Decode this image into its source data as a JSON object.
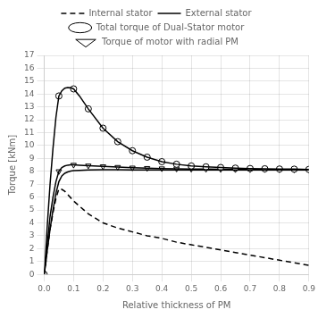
{
  "chart_data": {
    "type": "line",
    "xlabel": "Relative thickness of PM",
    "ylabel": "Torque [kNm]",
    "xlim": [
      0,
      0.9
    ],
    "ylim": [
      0,
      17
    ],
    "xticks": [
      {
        "value": 0.0,
        "label": "0.0"
      },
      0.1,
      0.2,
      0.3,
      0.4,
      0.5,
      0.6,
      0.7,
      0.8,
      0.9
    ],
    "yticks": [
      0,
      1,
      2,
      3,
      4,
      5,
      6,
      7,
      8,
      9,
      10,
      11,
      12,
      13,
      14,
      15,
      16,
      17
    ],
    "grid": true,
    "series": [
      {
        "name": "Internal stator",
        "color": "#000000",
        "line_style": "dashed",
        "marker": "none",
        "x": [
          0.0,
          0.005,
          0.01,
          0.02,
          0.03,
          0.04,
          0.05,
          0.06,
          0.07,
          0.08,
          0.09,
          0.1,
          0.15,
          0.2,
          0.25,
          0.3,
          0.35,
          0.4,
          0.45,
          0.5,
          0.55,
          0.6,
          0.65,
          0.7,
          0.75,
          0.8,
          0.85,
          0.9
        ],
        "values": [
          0.0,
          0.8,
          1.8,
          3.5,
          4.8,
          5.9,
          6.65,
          6.6,
          6.45,
          6.2,
          5.95,
          5.7,
          4.7,
          4.0,
          3.6,
          3.3,
          3.0,
          2.8,
          2.5,
          2.3,
          2.1,
          1.9,
          1.7,
          1.5,
          1.3,
          1.1,
          0.9,
          0.7
        ]
      },
      {
        "name": "External stator",
        "color": "#000000",
        "line_style": "solid",
        "marker": "none",
        "x": [
          0.0,
          0.005,
          0.01,
          0.02,
          0.03,
          0.04,
          0.05,
          0.06,
          0.07,
          0.08,
          0.09,
          0.1,
          0.12,
          0.15,
          0.2,
          0.25,
          0.3,
          0.35,
          0.4,
          0.45,
          0.5,
          0.55,
          0.6,
          0.65,
          0.7,
          0.75,
          0.8,
          0.85,
          0.9
        ],
        "values": [
          0.0,
          0.8,
          1.8,
          3.5,
          5.0,
          6.3,
          7.2,
          7.65,
          7.85,
          7.95,
          8.02,
          8.05,
          8.08,
          8.1,
          8.12,
          8.12,
          8.11,
          8.1,
          8.1,
          8.1,
          8.1,
          8.1,
          8.1,
          8.1,
          8.1,
          8.1,
          8.1,
          8.1,
          8.1
        ]
      },
      {
        "color": "#000000",
        "line_style": "solid",
        "marker": "none",
        "x": [
          0.0,
          0.005,
          0.01,
          0.02,
          0.03,
          0.04,
          0.05,
          0.06,
          0.07,
          0.08,
          0.09,
          0.1,
          0.12,
          0.15,
          0.2,
          0.25,
          0.3,
          0.35,
          0.4,
          0.45,
          0.5,
          0.55,
          0.6,
          0.65,
          0.7,
          0.75,
          0.8,
          0.85,
          0.9
        ],
        "values": [
          0.0,
          1.6,
          3.6,
          7.0,
          9.8,
          12.2,
          13.85,
          14.25,
          14.45,
          14.5,
          14.48,
          14.4,
          13.85,
          12.85,
          11.35,
          10.3,
          9.6,
          9.1,
          8.75,
          8.55,
          8.42,
          8.35,
          8.3,
          8.25,
          8.22,
          8.2,
          8.18,
          8.17,
          8.15
        ]
      },
      {
        "name": "Total torque of Dual-Stator motor",
        "color": "#000000",
        "line_style": "none",
        "marker": "circle",
        "x": [
          0.0,
          0.05,
          0.1,
          0.15,
          0.2,
          0.25,
          0.3,
          0.35,
          0.4,
          0.45,
          0.5,
          0.55,
          0.6,
          0.65,
          0.7,
          0.75,
          0.8,
          0.85,
          0.9
        ],
        "values": [
          0.0,
          13.85,
          14.4,
          12.85,
          11.35,
          10.3,
          9.6,
          9.1,
          8.75,
          8.55,
          8.42,
          8.35,
          8.3,
          8.25,
          8.22,
          8.2,
          8.18,
          8.17,
          8.15
        ]
      },
      {
        "color": "#000000",
        "line_style": "solid",
        "marker": "none",
        "x": [
          0.0,
          0.005,
          0.01,
          0.02,
          0.03,
          0.04,
          0.05,
          0.06,
          0.07,
          0.08,
          0.09,
          0.1,
          0.12,
          0.15,
          0.2,
          0.25,
          0.3,
          0.35,
          0.4,
          0.45,
          0.5,
          0.55,
          0.6,
          0.65,
          0.7,
          0.75,
          0.8,
          0.85,
          0.9
        ],
        "values": [
          0.0,
          1.0,
          2.2,
          4.5,
          6.0,
          7.2,
          8.0,
          8.3,
          8.42,
          8.48,
          8.5,
          8.5,
          8.48,
          8.44,
          8.38,
          8.33,
          8.28,
          8.25,
          8.22,
          8.2,
          8.18,
          8.17,
          8.16,
          8.15,
          8.15,
          8.15,
          8.14,
          8.13,
          8.12
        ]
      },
      {
        "name": "Torque of motor with radial PM",
        "color": "#000000",
        "line_style": "none",
        "marker": "triangle_down",
        "x": [
          0.0,
          0.05,
          0.1,
          0.15,
          0.2,
          0.25,
          0.3,
          0.35,
          0.4,
          0.45,
          0.5,
          0.55,
          0.6,
          0.65,
          0.7,
          0.75,
          0.8,
          0.85,
          0.9
        ],
        "values": [
          0.0,
          8.0,
          8.5,
          8.44,
          8.38,
          8.33,
          8.28,
          8.25,
          8.22,
          8.2,
          8.18,
          8.17,
          8.16,
          8.15,
          8.15,
          8.15,
          8.14,
          8.13,
          8.12
        ]
      }
    ]
  }
}
